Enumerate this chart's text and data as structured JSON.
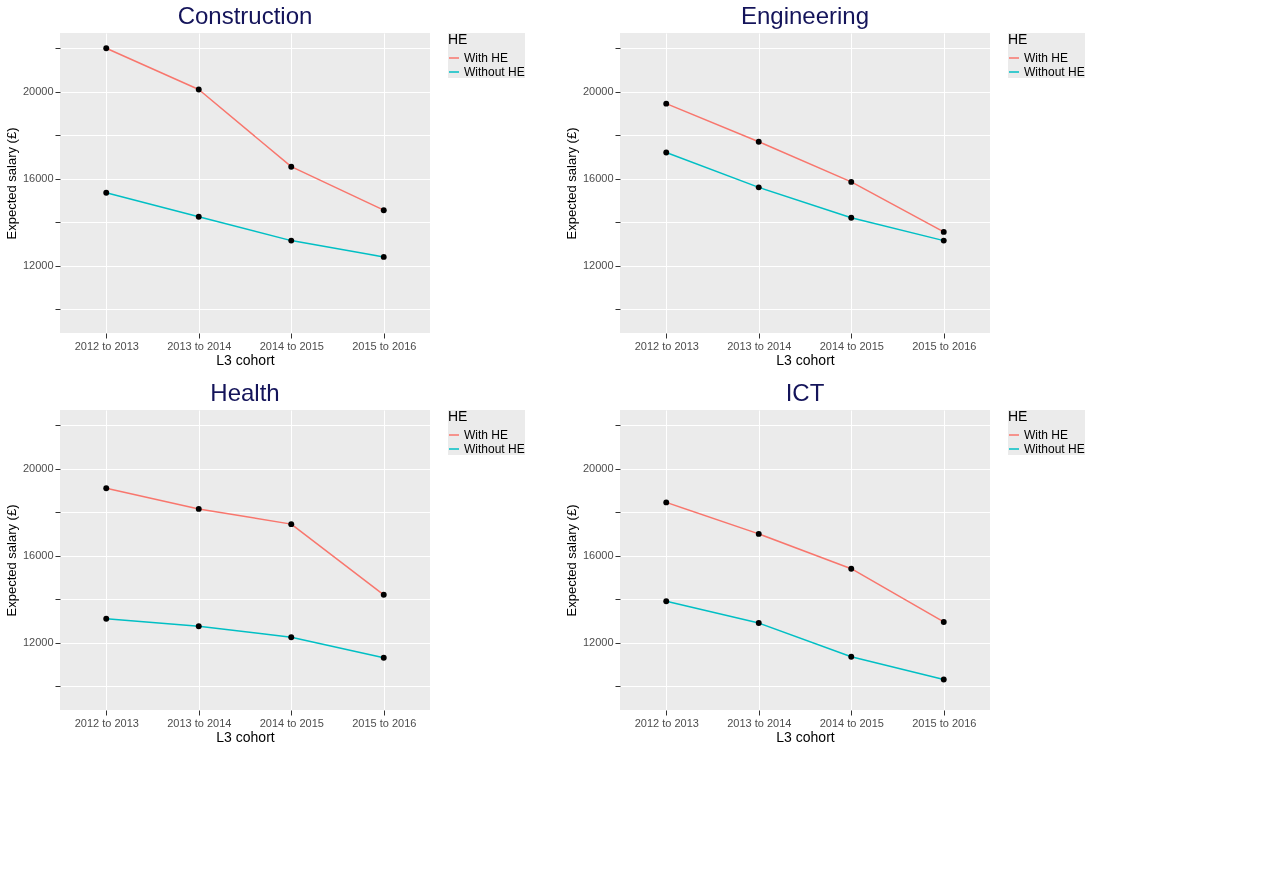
{
  "chart_data": [
    {
      "type": "line",
      "title": "Construction",
      "xlabel": "L3 cohort",
      "ylabel": "Expected salary (£)",
      "legend_title": "HE",
      "legend": "right",
      "grid": true,
      "marker": "circle",
      "categories": [
        "2012 to 2013",
        "2013 to 2014",
        "2014 to 2015",
        "2015 to 2016"
      ],
      "ylim": [
        8900,
        22700
      ],
      "yticks": [
        {
          "value": 10000,
          "label": null
        },
        12000,
        {
          "value": 14000,
          "label": null
        },
        16000,
        {
          "value": 18000,
          "label": null
        },
        20000,
        {
          "value": 22000,
          "label": null
        }
      ],
      "series": [
        {
          "name": "With HE",
          "color": "#f8766d",
          "values": [
            22000,
            20100,
            16550,
            14550
          ]
        },
        {
          "name": "Without HE",
          "color": "#00bfc4",
          "values": [
            15350,
            14250,
            13150,
            12400
          ]
        }
      ]
    },
    {
      "type": "line",
      "title": "Engineering",
      "xlabel": "L3 cohort",
      "ylabel": "Expected salary (£)",
      "legend_title": "HE",
      "legend": "right",
      "grid": true,
      "marker": "circle",
      "categories": [
        "2012 to 2013",
        "2013 to 2014",
        "2014 to 2015",
        "2015 to 2016"
      ],
      "ylim": [
        8900,
        22700
      ],
      "yticks": [
        {
          "value": 10000,
          "label": null
        },
        12000,
        {
          "value": 14000,
          "label": null
        },
        16000,
        {
          "value": 18000,
          "label": null
        },
        20000,
        {
          "value": 22000,
          "label": null
        }
      ],
      "series": [
        {
          "name": "With HE",
          "color": "#f8766d",
          "values": [
            19450,
            17700,
            15850,
            13550
          ]
        },
        {
          "name": "Without HE",
          "color": "#00bfc4",
          "values": [
            17200,
            15600,
            14200,
            13150
          ]
        }
      ]
    },
    {
      "type": "line",
      "title": "Health",
      "xlabel": "L3 cohort",
      "ylabel": "Expected salary (£)",
      "legend_title": "HE",
      "legend": "right",
      "grid": true,
      "marker": "circle",
      "categories": [
        "2012 to 2013",
        "2013 to 2014",
        "2014 to 2015",
        "2015 to 2016"
      ],
      "ylim": [
        8900,
        22700
      ],
      "yticks": [
        {
          "value": 10000,
          "label": null
        },
        12000,
        {
          "value": 14000,
          "label": null
        },
        16000,
        {
          "value": 18000,
          "label": null
        },
        20000,
        {
          "value": 22000,
          "label": null
        }
      ],
      "series": [
        {
          "name": "With HE",
          "color": "#f8766d",
          "values": [
            19100,
            18150,
            17450,
            14200
          ]
        },
        {
          "name": "Without HE",
          "color": "#00bfc4",
          "values": [
            13100,
            12750,
            12250,
            11300
          ]
        }
      ]
    },
    {
      "type": "line",
      "title": "ICT",
      "xlabel": "L3 cohort",
      "ylabel": "Expected salary (£)",
      "legend_title": "HE",
      "legend": "right",
      "grid": true,
      "marker": "circle",
      "categories": [
        "2012 to 2013",
        "2013 to 2014",
        "2014 to 2015",
        "2015 to 2016"
      ],
      "ylim": [
        8900,
        22700
      ],
      "yticks": [
        {
          "value": 10000,
          "label": null
        },
        12000,
        {
          "value": 14000,
          "label": null
        },
        16000,
        {
          "value": 18000,
          "label": null
        },
        20000,
        {
          "value": 22000,
          "label": null
        }
      ],
      "series": [
        {
          "name": "With HE",
          "color": "#f8766d",
          "values": [
            18450,
            17000,
            15400,
            12950
          ]
        },
        {
          "name": "Without HE",
          "color": "#00bfc4",
          "values": [
            13900,
            12900,
            11350,
            10300
          ]
        }
      ]
    }
  ]
}
